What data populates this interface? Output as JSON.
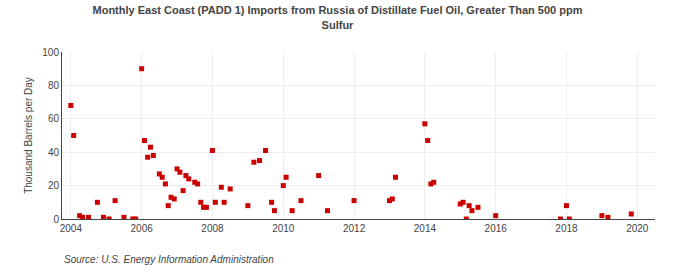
{
  "chart_data": {
    "type": "scatter",
    "title": "Monthly East Coast (PADD 1) Imports from Russia of Distillate Fuel Oil, Greater Than 500 ppm\nSulfur",
    "ylabel": "Thousand Barrels per Day",
    "annotations": [
      "Source: U.S. Energy Information Administration"
    ],
    "color": "#cc0000",
    "marker": "square",
    "grid": true,
    "xlim": [
      2003.75,
      2020.5
    ],
    "ylim": [
      0,
      100
    ],
    "xticks": [
      2004,
      2006,
      2008,
      2010,
      2012,
      2014,
      2016,
      2018,
      2020
    ],
    "yticks": [
      0,
      20,
      40,
      60,
      80,
      100
    ],
    "x": [
      2004.0,
      2004.08,
      2004.25,
      2004.33,
      2004.5,
      2004.75,
      2004.92,
      2005.08,
      2005.25,
      2005.5,
      2005.75,
      2005.83,
      2006.0,
      2006.08,
      2006.17,
      2006.25,
      2006.33,
      2006.5,
      2006.58,
      2006.67,
      2006.75,
      2006.83,
      2006.92,
      2007.0,
      2007.08,
      2007.17,
      2007.25,
      2007.33,
      2007.5,
      2007.58,
      2007.67,
      2007.75,
      2007.83,
      2008.0,
      2008.08,
      2008.25,
      2008.33,
      2008.5,
      2009.0,
      2009.17,
      2009.33,
      2009.5,
      2009.67,
      2009.75,
      2010.0,
      2010.08,
      2010.25,
      2010.5,
      2011.0,
      2011.25,
      2012.0,
      2013.0,
      2013.08,
      2013.17,
      2014.0,
      2014.08,
      2014.17,
      2014.25,
      2015.0,
      2015.08,
      2015.17,
      2015.25,
      2015.33,
      2015.5,
      2016.0,
      2017.83,
      2018.0,
      2018.08,
      2019.0,
      2019.17,
      2019.83
    ],
    "values": [
      68,
      50,
      2,
      1,
      1,
      10,
      1,
      0,
      11,
      1,
      0,
      0,
      90,
      47,
      37,
      43,
      38,
      27,
      25,
      21,
      8,
      13,
      12,
      30,
      28,
      17,
      26,
      24,
      22,
      21,
      10,
      7,
      7,
      41,
      10,
      19,
      10,
      18,
      8,
      34,
      35,
      41,
      10,
      5,
      20,
      25,
      5,
      11,
      26,
      5,
      11,
      11,
      12,
      25,
      57,
      47,
      21,
      22,
      9,
      10,
      0,
      8,
      5,
      7,
      2,
      0,
      8,
      0,
      2,
      1,
      3
    ]
  }
}
